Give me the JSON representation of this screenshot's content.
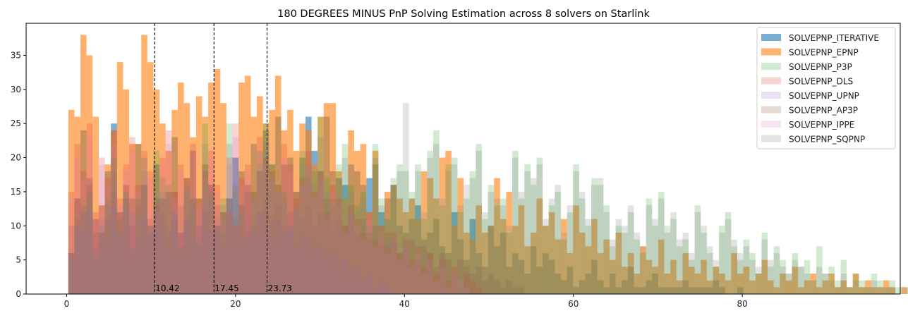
{
  "chart_data": {
    "type": "histogram",
    "title": "180 DEGREES MINUS PnP Solving Estimation across 8 solvers on Starlink",
    "xlabel": "",
    "ylabel": "",
    "xlim": [
      -4.8,
      98.7
    ],
    "ylim": [
      0,
      39.7
    ],
    "x_ticks": [
      0,
      20,
      40,
      60,
      80
    ],
    "y_ticks": [
      0,
      5,
      10,
      15,
      20,
      25,
      30,
      35
    ],
    "bin_width": 0.72,
    "x_start": 0.2,
    "grid": false,
    "legend_position": "top-right",
    "vlines": [
      {
        "x": 10.42,
        "label": "10.42"
      },
      {
        "x": 17.45,
        "label": "17.45"
      },
      {
        "x": 23.73,
        "label": "23.73"
      }
    ],
    "series": [
      {
        "name": "SOLVEPNP_ITERATIVE",
        "color": "#1f77b4",
        "alpha": 0.6,
        "values": [
          6,
          14,
          24,
          17,
          11,
          9,
          18,
          25,
          12,
          16,
          14,
          22,
          16,
          10,
          19,
          14,
          15,
          23,
          9,
          17,
          21,
          14,
          19,
          16,
          10,
          12,
          14,
          20,
          18,
          16,
          22,
          18,
          24,
          19,
          26,
          19,
          20,
          15,
          20,
          26,
          21,
          18,
          26,
          18,
          17,
          16,
          19,
          18,
          16,
          17,
          19,
          12,
          14,
          16,
          10,
          9,
          11,
          13,
          8,
          9,
          11,
          7,
          6,
          12,
          8,
          5,
          11,
          6,
          4,
          10,
          7,
          9,
          4,
          6,
          5,
          3,
          7,
          4,
          6,
          5,
          3,
          2,
          4,
          1,
          2,
          3,
          5,
          2,
          1,
          3,
          1,
          2,
          4,
          1,
          1,
          2,
          3,
          1,
          1,
          1,
          1,
          2,
          1,
          1,
          1,
          1,
          2,
          1,
          0,
          0,
          1,
          0,
          0,
          0,
          0,
          0,
          0,
          0,
          0,
          0,
          0,
          0,
          0,
          0,
          0,
          0,
          0,
          0,
          0,
          0,
          0,
          0,
          0,
          0,
          0,
          0,
          0,
          0,
          0,
          0,
          0
        ]
      },
      {
        "name": "SOLVEPNP_EPNP",
        "color": "#ff7f0e",
        "alpha": 0.6,
        "values": [
          27,
          26,
          38,
          35,
          26,
          13,
          19,
          24,
          34,
          30,
          22,
          22,
          38,
          34,
          30,
          25,
          21,
          27,
          31,
          28,
          23,
          29,
          26,
          31,
          33,
          28,
          12,
          10,
          31,
          32,
          26,
          29,
          25,
          27,
          32,
          24,
          27,
          21,
          25,
          24,
          19,
          26,
          28,
          28,
          18,
          14,
          24,
          21,
          22,
          12,
          21,
          10,
          15,
          16,
          14,
          12,
          14,
          11,
          18,
          17,
          14,
          20,
          21,
          10,
          17,
          9,
          8,
          13,
          9,
          10,
          17,
          11,
          15,
          10,
          13,
          7,
          9,
          14,
          10,
          12,
          8,
          11,
          6,
          13,
          9,
          7,
          11,
          6,
          8,
          5,
          9,
          4,
          6,
          3,
          7,
          5,
          4,
          8,
          3,
          5,
          2,
          6,
          4,
          3,
          5,
          2,
          4,
          3,
          2,
          6,
          3,
          4,
          2,
          3,
          5,
          2,
          1,
          3,
          2,
          4,
          1,
          2,
          3,
          1,
          2,
          3,
          1,
          2,
          1,
          3,
          1,
          2,
          1,
          1,
          2,
          1,
          0,
          1,
          0,
          1,
          1
        ]
      },
      {
        "name": "SOLVEPNP_P3P",
        "color": "#2ca02c",
        "alpha": 0.22,
        "values": [
          6,
          11,
          13,
          15,
          5,
          9,
          14,
          20,
          11,
          15,
          6,
          14,
          20,
          9,
          21,
          17,
          16,
          11,
          7,
          16,
          14,
          7,
          25,
          15,
          10,
          14,
          25,
          16,
          13,
          9,
          15,
          21,
          25,
          19,
          16,
          15,
          9,
          13,
          21,
          19,
          18,
          26,
          17,
          14,
          19,
          22,
          16,
          13,
          15,
          9,
          22,
          14,
          11,
          17,
          19,
          18,
          15,
          19,
          11,
          21,
          24,
          13,
          19,
          20,
          12,
          14,
          18,
          22,
          11,
          16,
          13,
          14,
          9,
          21,
          14,
          19,
          16,
          20,
          10,
          13,
          15,
          8,
          12,
          19,
          14,
          10,
          17,
          16,
          13,
          7,
          10,
          9,
          12,
          8,
          6,
          14,
          10,
          15,
          9,
          11,
          7,
          8,
          5,
          13,
          9,
          6,
          4,
          10,
          12,
          7,
          5,
          8,
          6,
          3,
          9,
          4,
          7,
          5,
          3,
          6,
          4,
          5,
          2,
          7,
          3,
          4,
          2,
          5,
          1,
          3,
          2,
          1,
          3,
          2,
          1,
          2,
          1,
          0,
          1,
          0,
          0
        ]
      },
      {
        "name": "SOLVEPNP_DLS",
        "color": "#d62728",
        "alpha": 0.2,
        "values": [
          15,
          22,
          18,
          25,
          12,
          20,
          17,
          24,
          14,
          19,
          23,
          16,
          21,
          18,
          13,
          20,
          24,
          15,
          19,
          17,
          22,
          14,
          18,
          21,
          16,
          12,
          20,
          25,
          17,
          19,
          15,
          23,
          20,
          18,
          16,
          22,
          19,
          14,
          17,
          21,
          15,
          18,
          12,
          16,
          14,
          10,
          13,
          11,
          9,
          12,
          8,
          10,
          7,
          9,
          6,
          8,
          5,
          7,
          4,
          6,
          3,
          5,
          2,
          4,
          1,
          3,
          2,
          1,
          0,
          0,
          0,
          0,
          0,
          0,
          0,
          0,
          0,
          0,
          0,
          0,
          0,
          0,
          0,
          0,
          0,
          0,
          0,
          0,
          0,
          0,
          0,
          0,
          0,
          0,
          0,
          0,
          0,
          0,
          0,
          0,
          0,
          0,
          0,
          0,
          0,
          0,
          0,
          0,
          0,
          0,
          0,
          0,
          0,
          0,
          0,
          0,
          0,
          0,
          0,
          0,
          0,
          0,
          0,
          0,
          0,
          0,
          0,
          0,
          0,
          0,
          0,
          0,
          0,
          0,
          0,
          0,
          0,
          0,
          0,
          0,
          0
        ]
      },
      {
        "name": "SOLVEPNP_UPNP",
        "color": "#9467bd",
        "alpha": 0.2,
        "values": [
          6,
          10,
          9,
          12,
          7,
          11,
          8,
          13,
          9,
          10,
          12,
          8,
          11,
          9,
          13,
          10,
          7,
          12,
          9,
          11,
          8,
          10,
          13,
          9,
          11,
          7,
          12,
          10,
          8,
          11,
          9,
          12,
          10,
          8,
          11,
          9,
          10,
          7,
          9,
          8,
          6,
          7,
          5,
          6,
          4,
          5,
          3,
          4,
          2,
          3,
          1,
          2,
          1,
          0,
          0,
          0,
          0,
          0,
          0,
          0,
          0,
          0,
          0,
          0,
          0,
          0,
          0,
          0,
          0,
          0,
          0,
          0,
          0,
          0,
          0,
          0,
          0,
          0,
          0,
          0,
          0,
          0,
          0,
          0,
          0,
          0,
          0,
          0,
          0,
          0,
          0,
          0,
          0,
          0,
          0,
          0,
          0,
          0,
          0,
          0,
          0,
          0,
          0,
          0,
          0,
          0,
          0,
          0,
          0,
          0,
          0,
          0,
          0,
          0,
          0,
          0,
          0,
          0,
          0,
          0,
          0,
          0,
          0,
          0,
          0,
          0,
          0,
          0,
          0,
          0,
          0,
          0,
          0,
          0,
          0,
          0,
          0,
          0,
          0,
          0,
          0
        ]
      },
      {
        "name": "SOLVEPNP_AP3P",
        "color": "#8c564b",
        "alpha": 0.22,
        "values": [
          10,
          14,
          12,
          16,
          9,
          13,
          11,
          15,
          12,
          14,
          10,
          13,
          16,
          11,
          14,
          12,
          9,
          15,
          13,
          11,
          14,
          10,
          12,
          16,
          13,
          9,
          14,
          11,
          13,
          15,
          10,
          12,
          14,
          11,
          13,
          10,
          12,
          15,
          11,
          13,
          10,
          12,
          14,
          9,
          11,
          10,
          12,
          9,
          11,
          8,
          10,
          7,
          9,
          8,
          6,
          7,
          8,
          5,
          7,
          6,
          4,
          6,
          5,
          3,
          5,
          4,
          3,
          4,
          2,
          3,
          2,
          1,
          2,
          1,
          1,
          0,
          0,
          0,
          0,
          0,
          0,
          0,
          0,
          0,
          0,
          0,
          0,
          0,
          0,
          0,
          0,
          0,
          0,
          0,
          0,
          0,
          0,
          0,
          0,
          0,
          0,
          0,
          0,
          0,
          0,
          0,
          0,
          0,
          0,
          0,
          0,
          0,
          0,
          0,
          0,
          0,
          0,
          0,
          0,
          0,
          0,
          0,
          0,
          0,
          0,
          0,
          0,
          0,
          0,
          0,
          0,
          0,
          0,
          0,
          0,
          0,
          0,
          0,
          0,
          0,
          0
        ]
      },
      {
        "name": "SOLVEPNP_IPPE",
        "color": "#e377c2",
        "alpha": 0.2,
        "values": [
          14,
          20,
          17,
          23,
          11,
          19,
          16,
          22,
          13,
          18,
          21,
          15,
          20,
          17,
          12,
          19,
          22,
          14,
          18,
          16,
          21,
          13,
          17,
          20,
          15,
          11,
          19,
          23,
          16,
          18,
          14,
          21,
          19,
          17,
          15,
          20,
          18,
          13,
          16,
          19,
          14,
          17,
          11,
          15,
          13,
          9,
          12,
          10,
          8,
          11,
          7,
          9,
          6,
          8,
          5,
          7,
          4,
          6,
          3,
          5,
          2,
          4,
          1,
          3,
          2,
          1,
          0,
          0,
          0,
          0,
          0,
          0,
          0,
          0,
          0,
          0,
          0,
          0,
          0,
          0,
          0,
          0,
          0,
          0,
          0,
          0,
          0,
          0,
          0,
          0,
          0,
          0,
          0,
          0,
          0,
          0,
          0,
          0,
          0,
          0,
          0,
          0,
          0,
          0,
          0,
          0,
          0,
          0,
          0,
          0,
          0,
          0,
          0,
          0,
          0,
          0,
          0,
          0,
          0,
          0,
          0,
          0,
          0,
          0,
          0,
          0,
          0,
          0,
          0,
          0,
          0,
          0,
          0,
          0,
          0,
          0,
          0,
          0,
          0,
          0,
          0
        ]
      },
      {
        "name": "SOLVEPNP_SQPNP",
        "color": "#7f7f7f",
        "alpha": 0.22,
        "values": [
          5,
          9,
          12,
          14,
          6,
          10,
          13,
          18,
          9,
          14,
          7,
          12,
          18,
          10,
          19,
          15,
          14,
          12,
          6,
          15,
          13,
          8,
          22,
          14,
          9,
          13,
          22,
          15,
          12,
          8,
          14,
          19,
          22,
          17,
          15,
          14,
          10,
          12,
          19,
          17,
          16,
          23,
          15,
          13,
          17,
          20,
          15,
          12,
          14,
          10,
          20,
          13,
          11,
          16,
          18,
          28,
          14,
          18,
          12,
          20,
          22,
          14,
          18,
          19,
          13,
          16,
          17,
          21,
          12,
          15,
          14,
          13,
          10,
          20,
          15,
          18,
          17,
          19,
          11,
          14,
          16,
          9,
          13,
          18,
          15,
          11,
          16,
          17,
          12,
          8,
          11,
          10,
          13,
          9,
          7,
          13,
          11,
          14,
          10,
          12,
          8,
          9,
          6,
          12,
          10,
          7,
          5,
          9,
          11,
          8,
          6,
          7,
          5,
          4,
          8,
          5,
          6,
          4,
          3,
          5,
          4,
          3,
          2,
          4,
          3,
          2,
          1,
          3,
          1,
          2,
          1,
          1,
          2,
          1,
          1,
          1,
          0,
          1,
          0,
          0,
          0
        ]
      }
    ]
  }
}
